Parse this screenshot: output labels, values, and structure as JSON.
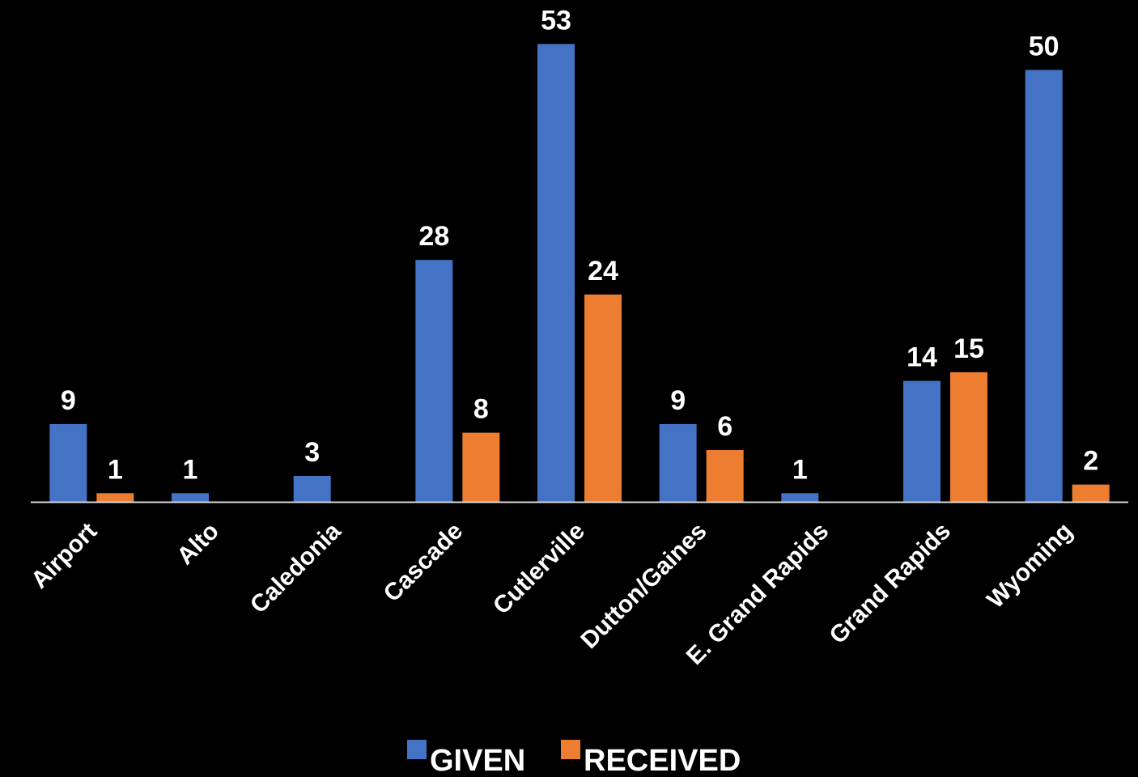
{
  "chart_data": {
    "type": "bar",
    "categories": [
      "Airport",
      "Alto",
      "Caledonia",
      "Cascade",
      "Cutlerville",
      "Dutton/Gaines",
      "E. Grand Rapids",
      "Grand Rapids",
      "Wyoming"
    ],
    "series": [
      {
        "name": "GIVEN",
        "color": "#4472C4",
        "values": [
          9,
          1,
          3,
          28,
          53,
          9,
          1,
          14,
          50
        ],
        "labels": [
          "9",
          "1",
          "3",
          "28",
          "53",
          "9",
          "1",
          "14",
          "50"
        ]
      },
      {
        "name": "RECEIVED",
        "color": "#ED7D31",
        "values": [
          1,
          null,
          null,
          8,
          24,
          6,
          null,
          15,
          2
        ],
        "labels": [
          "1",
          null,
          null,
          "8",
          "24",
          "6",
          null,
          "15",
          "2"
        ]
      }
    ],
    "title": "",
    "xlabel": "",
    "ylabel": "",
    "ylim": [
      0,
      55
    ],
    "grid": false,
    "legend_position": "bottom",
    "background_color": "#000000",
    "text_color": "#ffffff",
    "axis_color": "#d9d9d9"
  }
}
